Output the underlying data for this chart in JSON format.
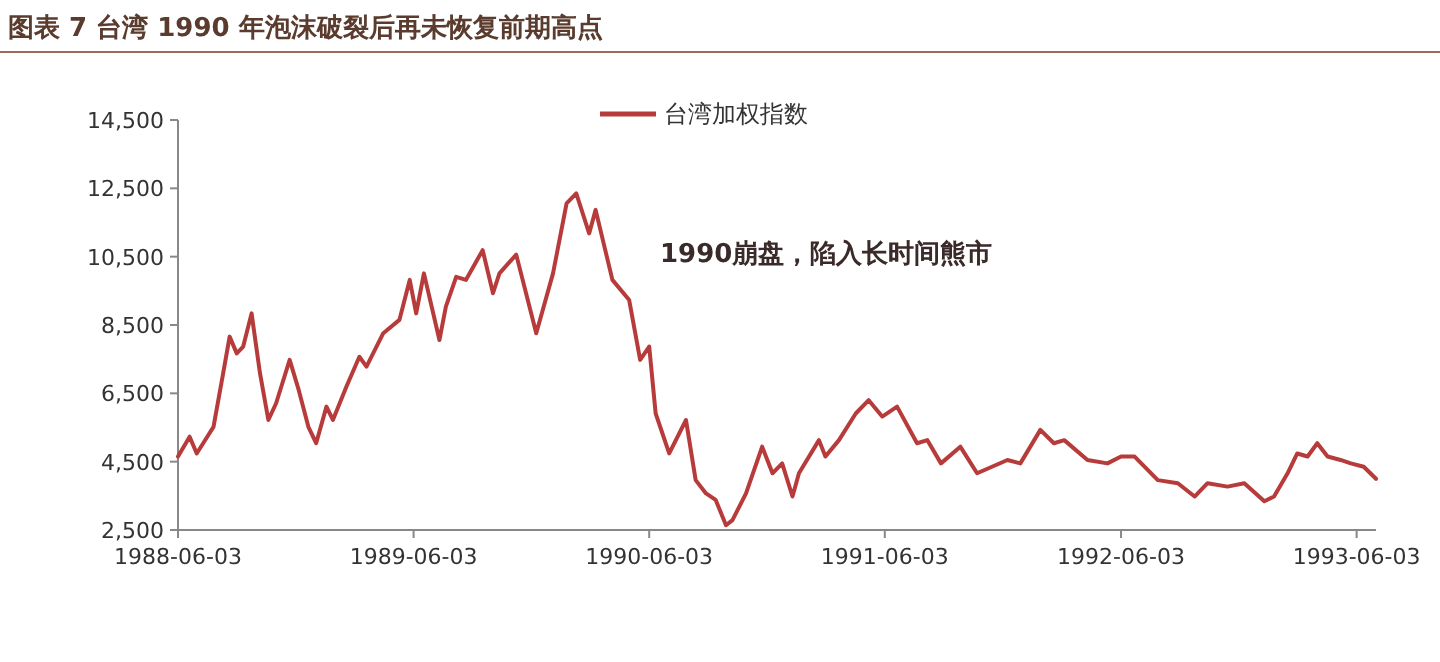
{
  "chart_data": {
    "type": "line",
    "title": "图表 7 台湾 1990 年泡沫破裂后再未恢复前期高点",
    "annotations": [
      "1990崩盘，陷入长时间熊市"
    ],
    "legend": "top",
    "x": [
      "1988-06-03",
      "1988-06-21",
      "1988-07-02",
      "1988-07-12",
      "1988-07-28",
      "1988-08-12",
      "1988-08-22",
      "1988-09-02",
      "1988-09-12",
      "1988-09-25",
      "1988-10-08",
      "1988-10-21",
      "1988-11-02",
      "1988-11-23",
      "1988-12-07",
      "1988-12-22",
      "1989-01-03",
      "1989-01-19",
      "1989-01-29",
      "1989-02-19",
      "1989-03-11",
      "1989-03-22",
      "1989-04-17",
      "1989-05-12",
      "1989-05-28",
      "1989-06-07",
      "1989-06-19",
      "1989-07-13",
      "1989-07-23",
      "1989-08-08",
      "1989-08-23",
      "1989-09-18",
      "1989-10-04",
      "1989-10-14",
      "1989-11-09",
      "1989-12-10",
      "1990-01-05",
      "1990-01-26",
      "1990-02-10",
      "1990-03-02",
      "1990-03-12",
      "1990-04-07",
      "1990-05-03",
      "1990-05-20",
      "1990-06-03",
      "1990-06-13",
      "1990-07-04",
      "1990-07-30",
      "1990-08-14",
      "1990-08-30",
      "1990-09-14",
      "1990-09-30",
      "1990-10-10",
      "1990-10-31",
      "1990-11-25",
      "1990-12-11",
      "1990-12-26",
      "1991-01-11",
      "1991-01-21",
      "1991-02-21",
      "1991-03-03",
      "1991-03-24",
      "1991-04-19",
      "1991-05-09",
      "1991-05-30",
      "1991-06-22",
      "1991-07-23",
      "1991-08-08",
      "1991-08-29",
      "1991-09-28",
      "1991-10-24",
      "1991-12-10",
      "1991-12-30",
      "1992-01-30",
      "1992-02-20",
      "1992-03-07",
      "1992-04-12",
      "1992-05-13",
      "1992-06-03",
      "1992-06-24",
      "1992-07-30",
      "1992-08-30",
      "1992-09-25",
      "1992-10-15",
      "1992-11-15",
      "1992-12-11",
      "1993-01-11",
      "1993-01-26",
      "1993-02-16",
      "1993-03-03",
      "1993-03-19",
      "1993-04-03",
      "1993-04-19",
      "1993-05-09",
      "1993-05-25",
      "1993-06-14",
      "1993-07-03"
    ],
    "series": [
      {
        "name": "台湾加权指数",
        "color": "#b83b3b",
        "values": [
          4650,
          5230,
          4740,
          5040,
          5520,
          7090,
          8160,
          7670,
          7870,
          8840,
          7090,
          5720,
          6210,
          7480,
          6600,
          5520,
          5040,
          6110,
          5720,
          6700,
          7570,
          7280,
          8260,
          8650,
          9820,
          8840,
          10010,
          8060,
          9040,
          9910,
          9820,
          10690,
          9430,
          10010,
          10560,
          8260,
          10010,
          12060,
          12350,
          11180,
          11870,
          9820,
          9230,
          7480,
          7870,
          5910,
          4740,
          5720,
          3960,
          3570,
          3380,
          2640,
          2790,
          3570,
          4940,
          4160,
          4450,
          3480,
          4160,
          5130,
          4650,
          5130,
          5910,
          6300,
          5820,
          6110,
          5040,
          5130,
          4450,
          4940,
          4160,
          4550,
          4450,
          5430,
          5040,
          5130,
          4550,
          4450,
          4650,
          4650,
          3960,
          3870,
          3480,
          3870,
          3770,
          3870,
          3340,
          3480,
          4160,
          4740,
          4650,
          5040,
          4650,
          4550,
          4450,
          4350,
          4000
        ]
      }
    ],
    "xlim": [
      "1988-06-03",
      "1993-07-03"
    ],
    "ylim": [
      2500,
      14500
    ],
    "xticks": [
      {
        "value": "1988-06-03",
        "label": "1988-06-03"
      },
      {
        "value": "1989-06-03",
        "label": "1989-06-03"
      },
      {
        "value": "1990-06-03",
        "label": "1990-06-03"
      },
      {
        "value": "1991-06-03",
        "label": "1991-06-03"
      },
      {
        "value": "1992-06-03",
        "label": "1992-06-03"
      },
      {
        "value": "1993-06-03",
        "label": "1993-06-03"
      }
    ],
    "yticks": [
      {
        "value": 2500,
        "label": "2,500"
      },
      {
        "value": 4500,
        "label": "4,500"
      },
      {
        "value": 6500,
        "label": "6,500"
      },
      {
        "value": 8500,
        "label": "8,500"
      },
      {
        "value": 10500,
        "label": "10,500"
      },
      {
        "value": 12500,
        "label": "12,500"
      },
      {
        "value": 14500,
        "label": "14,500"
      }
    ]
  }
}
